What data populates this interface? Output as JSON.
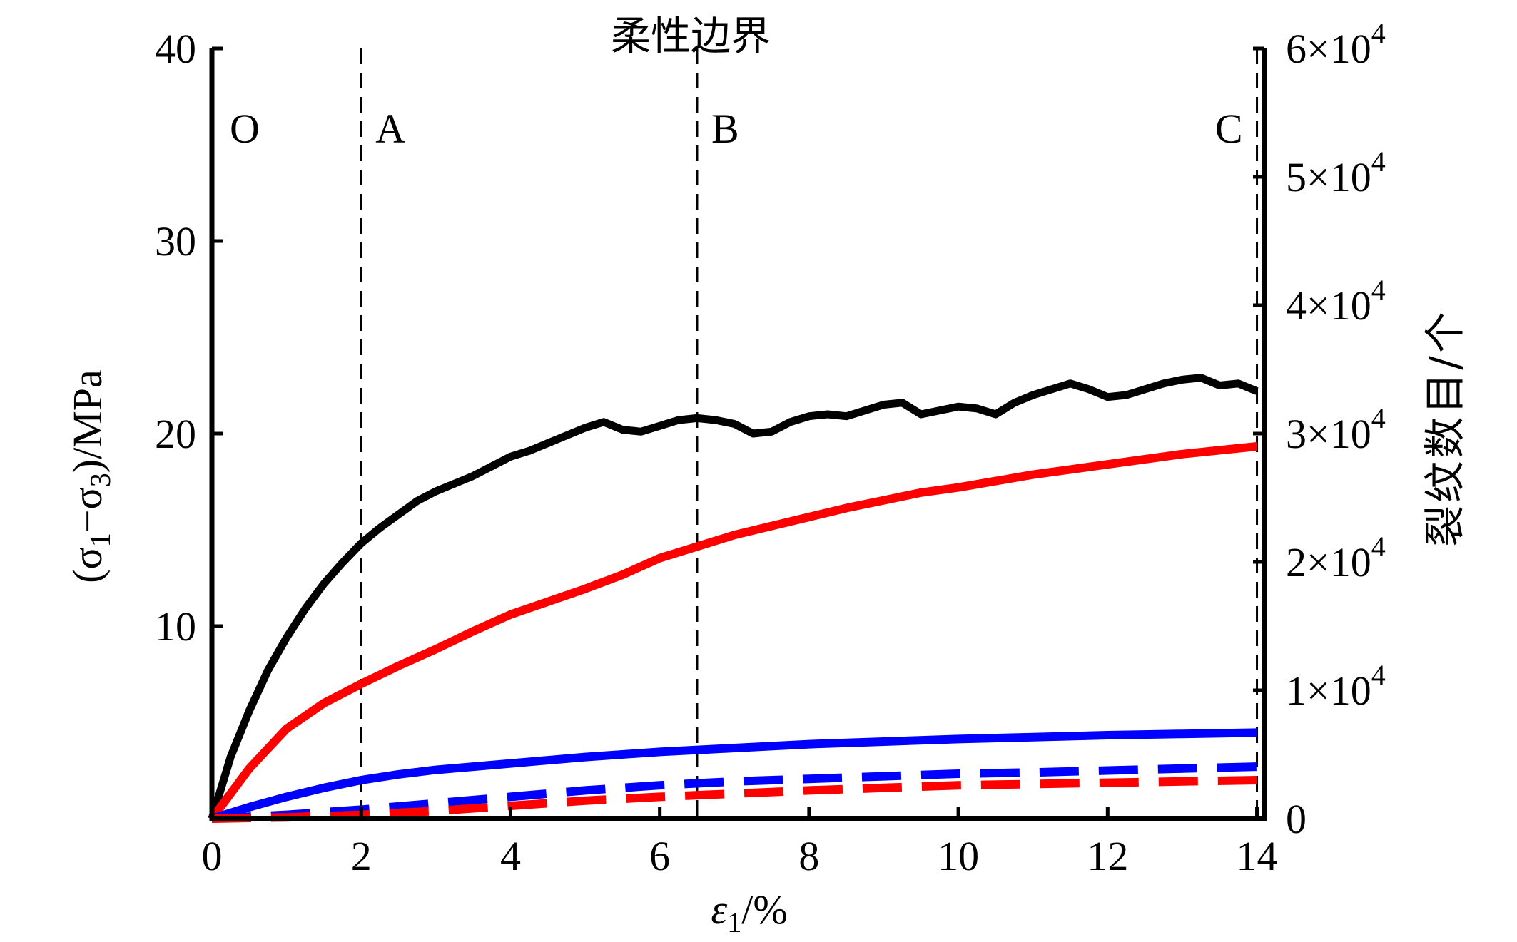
{
  "chart_data": {
    "type": "line",
    "title": "柔性边界",
    "xlabel": {
      "symbol": "ε",
      "sub": "1",
      "rest": "/%"
    },
    "ylabel_left": {
      "open": "(σ",
      "sub1": "1",
      "mid": "−σ",
      "sub2": "3",
      "close": ")/MPa"
    },
    "ylabel_right": "裂纹数目/个",
    "xlim": [
      0,
      14.1
    ],
    "ylim_left": [
      0,
      40
    ],
    "ylim_right": [
      0,
      60000
    ],
    "x_ticks": [
      "0",
      "2",
      "4",
      "6",
      "8",
      "10",
      "12",
      "14"
    ],
    "y_left_ticks": [
      "10",
      "20",
      "30",
      "40"
    ],
    "y_right_ticks": [
      {
        "mantissa": "1×10",
        "exp": "4"
      },
      {
        "mantissa": "2×10",
        "exp": "4"
      },
      {
        "mantissa": "3×10",
        "exp": "4"
      },
      {
        "mantissa": "4×10",
        "exp": "4"
      },
      {
        "mantissa": "5×10",
        "exp": "4"
      },
      {
        "mantissa": "6×10",
        "exp": "4"
      }
    ],
    "y_right_zero": "0",
    "stage_lines": [
      {
        "label": "O",
        "x": 0
      },
      {
        "label": "A",
        "x": 2.0
      },
      {
        "label": "B",
        "x": 6.5
      },
      {
        "label": "C",
        "x": 14.0
      }
    ],
    "colors": {
      "stress": "#000000",
      "total": "#ff0000",
      "solid_blue": "#0000ff",
      "dashed_blue": "#0000ff",
      "dashed_red": "#ff0000"
    },
    "series": [
      {
        "axis": "left",
        "color": "#000000",
        "style": "solid",
        "x": [
          0,
          0.25,
          0.5,
          0.75,
          1.0,
          1.25,
          1.5,
          1.75,
          2.0,
          2.25,
          2.5,
          2.75,
          3.0,
          3.25,
          3.5,
          3.75,
          4.0,
          4.25,
          4.5,
          4.75,
          5.0,
          5.25,
          5.5,
          5.75,
          6.0,
          6.25,
          6.5,
          6.75,
          7.0,
          7.25,
          7.5,
          7.75,
          8.0,
          8.25,
          8.5,
          8.75,
          9.0,
          9.25,
          9.5,
          9.75,
          10.0,
          10.25,
          10.5,
          10.75,
          11.0,
          11.25,
          11.5,
          11.75,
          12.0,
          12.25,
          12.5,
          12.75,
          13.0,
          13.25,
          13.5,
          13.75,
          14.0
        ],
        "y": [
          0,
          3.2,
          5.6,
          7.7,
          9.4,
          10.9,
          12.2,
          13.3,
          14.3,
          15.1,
          15.8,
          16.5,
          17.0,
          17.4,
          17.8,
          18.3,
          18.8,
          19.1,
          19.5,
          19.9,
          20.3,
          20.6,
          20.2,
          20.1,
          20.4,
          20.7,
          20.8,
          20.7,
          20.5,
          20.0,
          20.1,
          20.6,
          20.9,
          21.0,
          20.9,
          21.2,
          21.5,
          21.6,
          21.0,
          21.2,
          21.4,
          21.3,
          21.0,
          21.6,
          22.0,
          22.3,
          22.6,
          22.3,
          21.9,
          22.0,
          22.3,
          22.6,
          22.8,
          22.9,
          22.5,
          22.6,
          22.2
        ]
      },
      {
        "axis": "right",
        "color": "#ff0000",
        "style": "solid",
        "x": [
          0,
          0.5,
          1.0,
          1.5,
          2.0,
          2.5,
          3.0,
          3.5,
          4.0,
          4.5,
          5.0,
          5.5,
          6.0,
          6.5,
          7.0,
          7.5,
          8.0,
          8.5,
          9.0,
          9.5,
          10.0,
          10.5,
          11.0,
          11.5,
          12.0,
          12.5,
          13.0,
          13.5,
          14.0
        ],
        "y": [
          0,
          3900,
          7000,
          9000,
          10500,
          11900,
          13200,
          14600,
          15900,
          16900,
          17900,
          19000,
          20300,
          21200,
          22100,
          22800,
          23500,
          24200,
          24800,
          25400,
          25800,
          26300,
          26800,
          27200,
          27600,
          28000,
          28400,
          28700,
          29000
        ]
      },
      {
        "axis": "right",
        "color": "#0000ff",
        "style": "solid",
        "x": [
          0,
          0.5,
          1.0,
          1.5,
          2.0,
          2.5,
          3.0,
          3.5,
          4.0,
          5.0,
          6.0,
          7.0,
          8.0,
          9.0,
          10.0,
          11.0,
          12.0,
          13.0,
          14.0
        ],
        "y": [
          0,
          900,
          1700,
          2400,
          3000,
          3450,
          3800,
          4050,
          4300,
          4800,
          5200,
          5500,
          5800,
          6000,
          6200,
          6350,
          6500,
          6600,
          6700
        ]
      },
      {
        "axis": "right",
        "color": "#0000ff",
        "style": "dashed",
        "x": [
          0,
          1.0,
          2.0,
          3.0,
          4.0,
          5.0,
          6.0,
          7.0,
          8.0,
          9.0,
          10.0,
          11.0,
          12.0,
          13.0,
          14.0
        ],
        "y": [
          0,
          300,
          700,
          1200,
          1700,
          2200,
          2600,
          2900,
          3100,
          3300,
          3500,
          3600,
          3750,
          3900,
          4050
        ]
      },
      {
        "axis": "right",
        "color": "#ff0000",
        "style": "dashed",
        "x": [
          0,
          1.0,
          2.0,
          3.0,
          4.0,
          5.0,
          6.0,
          7.0,
          8.0,
          9.0,
          10.0,
          11.0,
          12.0,
          13.0,
          14.0
        ],
        "y": [
          0,
          100,
          300,
          600,
          1000,
          1400,
          1700,
          1950,
          2200,
          2400,
          2600,
          2700,
          2800,
          2900,
          3000
        ]
      }
    ]
  }
}
